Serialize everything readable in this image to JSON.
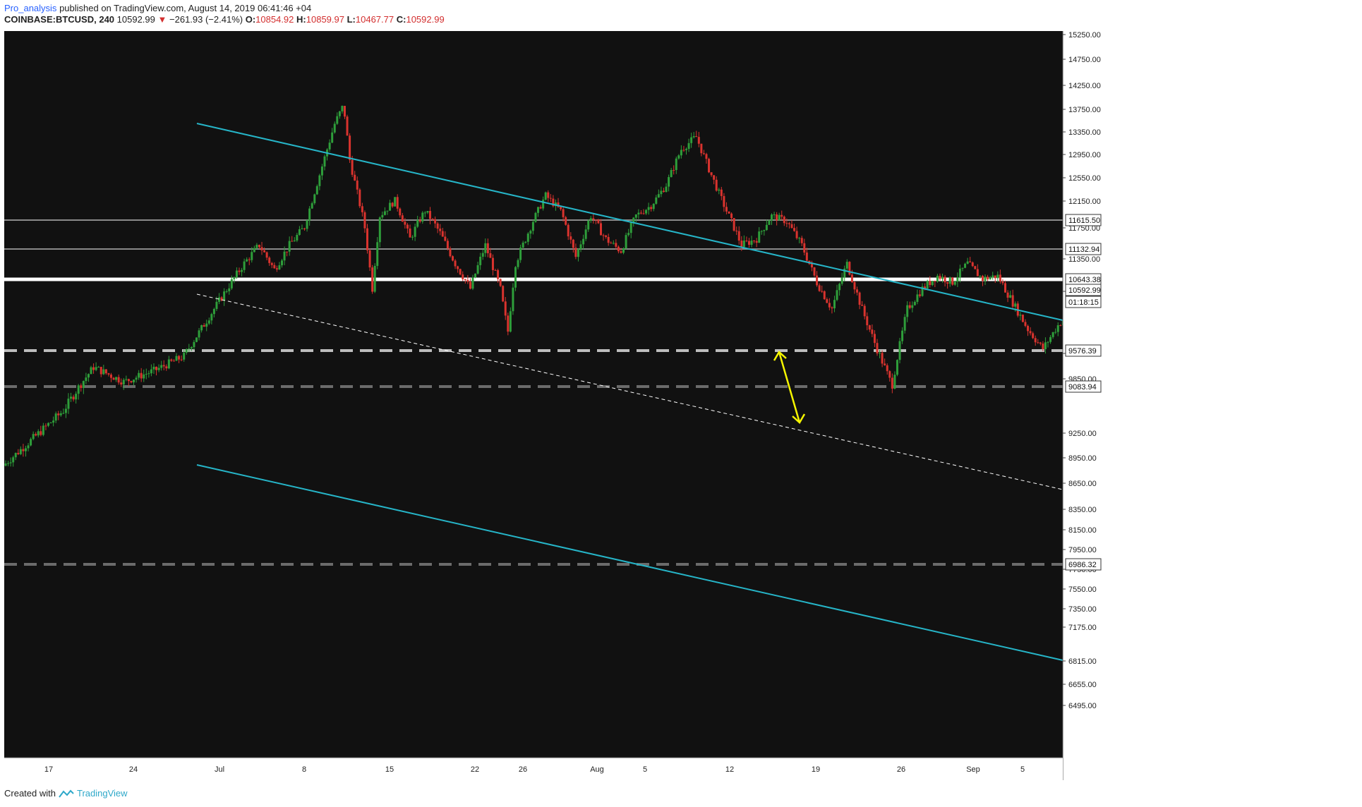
{
  "header": {
    "author": "Pro_analysis",
    "published_text": "published on TradingView.com, August 14, 2019 06:41:46 +04",
    "symbol": "COINBASE:BTCUSD, 240",
    "last": "10592.99",
    "change_arrow": "▼",
    "change": "−261.93 (−2.41%)",
    "open_label": "O:",
    "open": "10854.92",
    "high_label": "H:",
    "high": "10859.97",
    "low_label": "L:",
    "low": "10467.77",
    "close_label": "C:",
    "close": "10592.99"
  },
  "price_axis": {
    "ticks": [
      "15250.00",
      "14750.00",
      "14250.00",
      "13750.00",
      "13350.00",
      "12950.00",
      "12550.00",
      "12150.00",
      "11750.00",
      "11350.00",
      "10950.00",
      "10150.00",
      "9850.00",
      "9250.00",
      "8950.00",
      "8650.00",
      "8350.00",
      "8150.00",
      "7950.00",
      "7750.00",
      "7550.00",
      "7350.00",
      "7175.00",
      "6815.00",
      "6655.00",
      "6495.00"
    ],
    "labels": [
      {
        "text": "11615.50",
        "style": "light"
      },
      {
        "text": "11132.94",
        "style": "light"
      },
      {
        "text": "10643.38",
        "style": "light"
      },
      {
        "text": "10592.99",
        "style": "light"
      },
      {
        "text": "01:18:15",
        "style": "light"
      },
      {
        "text": "9576.39",
        "style": "light"
      },
      {
        "text": "9083.94",
        "style": "light"
      },
      {
        "text": "6986.32",
        "style": "light"
      }
    ]
  },
  "time_axis": {
    "labels": [
      "17",
      "24",
      "Jul",
      "8",
      "15",
      "22",
      "26",
      "Aug",
      "5",
      "12",
      "19",
      "26",
      "Sep",
      "5"
    ]
  },
  "levels": [
    {
      "price": 11615.5,
      "style": "solid-gray"
    },
    {
      "price": 11132.94,
      "style": "solid-gray"
    },
    {
      "price": 10643.38,
      "style": "solid-white"
    },
    {
      "price": 9576.39,
      "style": "dashed-white"
    },
    {
      "price": 9083.94,
      "style": "dashed-gray"
    },
    {
      "price": 6986.32,
      "style": "dashed-gray"
    }
  ],
  "colors": {
    "background": "#111111",
    "channel": "#26b5c8",
    "up": "#2e9e3a",
    "down": "#d9332e",
    "arrow": "#f5f500"
  },
  "footer": {
    "created_with": "Created with",
    "brand": "TradingView"
  }
}
